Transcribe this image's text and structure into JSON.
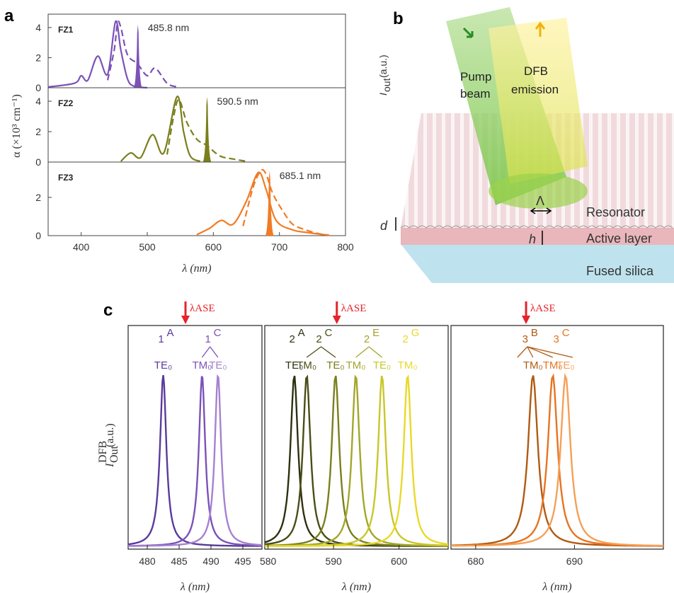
{
  "panels": {
    "a": "a",
    "b": "b",
    "c": "c"
  },
  "colors": {
    "fz1": "#7b52b8",
    "fz2": "#7a7f1c",
    "fz3": "#f17b25",
    "ase": "#e52329"
  },
  "chart_data": [
    {
      "type": "line",
      "panel": "a",
      "xlabel": "λ (nm)",
      "ylabel": "α (×10³ cm⁻¹)",
      "xlim": [
        350,
        800
      ],
      "xticks": [
        "400",
        "500",
        "600",
        "700",
        "800"
      ],
      "subplots": [
        {
          "name": "FZ1",
          "peak_label": "485.8 nm",
          "ylim": [
            0,
            4.7
          ],
          "yticks": [
            "0",
            "2",
            "4"
          ],
          "absorbance": {
            "x": [
              350,
              390,
              400,
              410,
              425,
              440,
              452,
              460,
              470,
              480,
              500
            ],
            "y": [
              0.05,
              0.3,
              0.8,
              0.5,
              2.1,
              0.9,
              4.4,
              2.5,
              0.6,
              0.1,
              0.0
            ]
          },
          "photoluminescence": {
            "x": [
              440,
              450,
              455,
              460,
              470,
              485,
              500,
              512,
              530,
              545
            ],
            "y": [
              0.5,
              2.5,
              4.3,
              4.0,
              2.2,
              1.6,
              0.8,
              1.3,
              0.3,
              0.05
            ]
          },
          "ase_peak": {
            "x": 485.8,
            "y": 4.2
          }
        },
        {
          "name": "FZ2",
          "peak_label": "590.5 nm",
          "ylim": [
            0,
            4.7
          ],
          "yticks": [
            "0",
            "2",
            "4"
          ],
          "absorbance": {
            "x": [
              460,
              475,
              490,
              508,
              525,
              545,
              555,
              565,
              580
            ],
            "y": [
              0.05,
              0.6,
              0.3,
              1.8,
              0.6,
              4.3,
              2.0,
              0.4,
              0.05
            ]
          },
          "photoluminescence": {
            "x": [
              530,
              540,
              548,
              560,
              575,
              590,
              610,
              630,
              650
            ],
            "y": [
              0.5,
              3.0,
              4.1,
              2.6,
              1.5,
              1.1,
              0.4,
              0.2,
              0.05
            ]
          },
          "ase_peak": {
            "x": 590.5,
            "y": 4.3
          }
        },
        {
          "name": "FZ3",
          "peak_label": "685.1 nm",
          "ylim": [
            0,
            3.7
          ],
          "yticks": [
            "0",
            "2"
          ],
          "absorbance": {
            "x": [
              575,
              595,
              612,
              630,
              650,
              668,
              680,
              695,
              720,
              745,
              760,
              775
            ],
            "y": [
              0.05,
              0.4,
              0.8,
              0.6,
              1.8,
              3.3,
              2.4,
              0.8,
              0.3,
              0.15,
              0.08,
              0.03
            ]
          },
          "photoluminescence": {
            "x": [
              645,
              660,
              672,
              680,
              690,
              705,
              720,
              740,
              760,
              775
            ],
            "y": [
              0.5,
              2.5,
              3.4,
              3.2,
              2.2,
              1.3,
              0.6,
              0.3,
              0.1,
              0.03
            ]
          },
          "ase_peak": {
            "x": 685.1,
            "y": 3.4
          }
        }
      ]
    },
    {
      "type": "line",
      "panel": "c",
      "xlabel": "λ (nm)",
      "ylabel": "I_Out^DFB (a.u.)",
      "ase_label": "λASE",
      "subplots": [
        {
          "xlim": [
            477,
            498
          ],
          "xticks": [
            "480",
            "485",
            "490",
            "495"
          ],
          "ase_x": 486,
          "mode_groups": [
            {
              "label": "1",
              "sup": "A"
            },
            {
              "label": "1",
              "sup": "C"
            }
          ],
          "peaks": [
            {
              "center": 482.5,
              "mode": "TE₀",
              "color": "#5a3a9c"
            },
            {
              "center": 488.6,
              "mode": "TM₀",
              "color": "#7b52b8"
            },
            {
              "center": 491.1,
              "mode": "TE₀",
              "color": "#a482d0"
            }
          ]
        },
        {
          "xlim": [
            579.5,
            607.5
          ],
          "xticks": [
            "580",
            "590",
            "600"
          ],
          "ase_x": 590.5,
          "mode_groups": [
            {
              "label": "2",
              "sup": "A"
            },
            {
              "label": "2",
              "sup": "C"
            },
            {
              "label": "2",
              "sup": "E"
            },
            {
              "label": "2",
              "sup": "G"
            }
          ],
          "peaks": [
            {
              "center": 584.0,
              "mode": "TE₀",
              "color": "#2d3010"
            },
            {
              "center": 585.9,
              "mode": "TM₀",
              "color": "#4a4d16"
            },
            {
              "center": 590.3,
              "mode": "TE₀",
              "color": "#7a7f1c"
            },
            {
              "center": 593.4,
              "mode": "TM₀",
              "color": "#a3a62a"
            },
            {
              "center": 597.4,
              "mode": "TE₀",
              "color": "#c9c62a"
            },
            {
              "center": 601.3,
              "mode": "TM₀",
              "color": "#e8d92a"
            }
          ]
        },
        {
          "xlim": [
            677.5,
            699
          ],
          "xticks": [
            "680",
            "690"
          ],
          "ase_x": 685.1,
          "mode_groups": [
            {
              "label": "3",
              "sup": "B"
            },
            {
              "label": "3",
              "sup": "C"
            }
          ],
          "peaks": [
            {
              "center": 685.8,
              "mode": "TM₀",
              "color": "#b05a12"
            },
            {
              "center": 687.8,
              "mode": "TM₀",
              "color": "#e67422"
            },
            {
              "center": 689.1,
              "mode": "TE₀",
              "color": "#f5a058"
            }
          ]
        }
      ]
    }
  ],
  "diagram_b": {
    "pump_label_1": "Pump",
    "pump_label_2": "beam",
    "dfb_label_1": "DFB",
    "dfb_label_2": "emission",
    "yaxis_label": "I",
    "yaxis_sub": "out",
    "yaxis_unit": "(a.u.)",
    "resonator": "Resonator",
    "active_layer": "Active layer",
    "fused_silica": "Fused silica",
    "period_symbol": "Λ",
    "d_symbol": "d",
    "h_symbol": "h"
  }
}
